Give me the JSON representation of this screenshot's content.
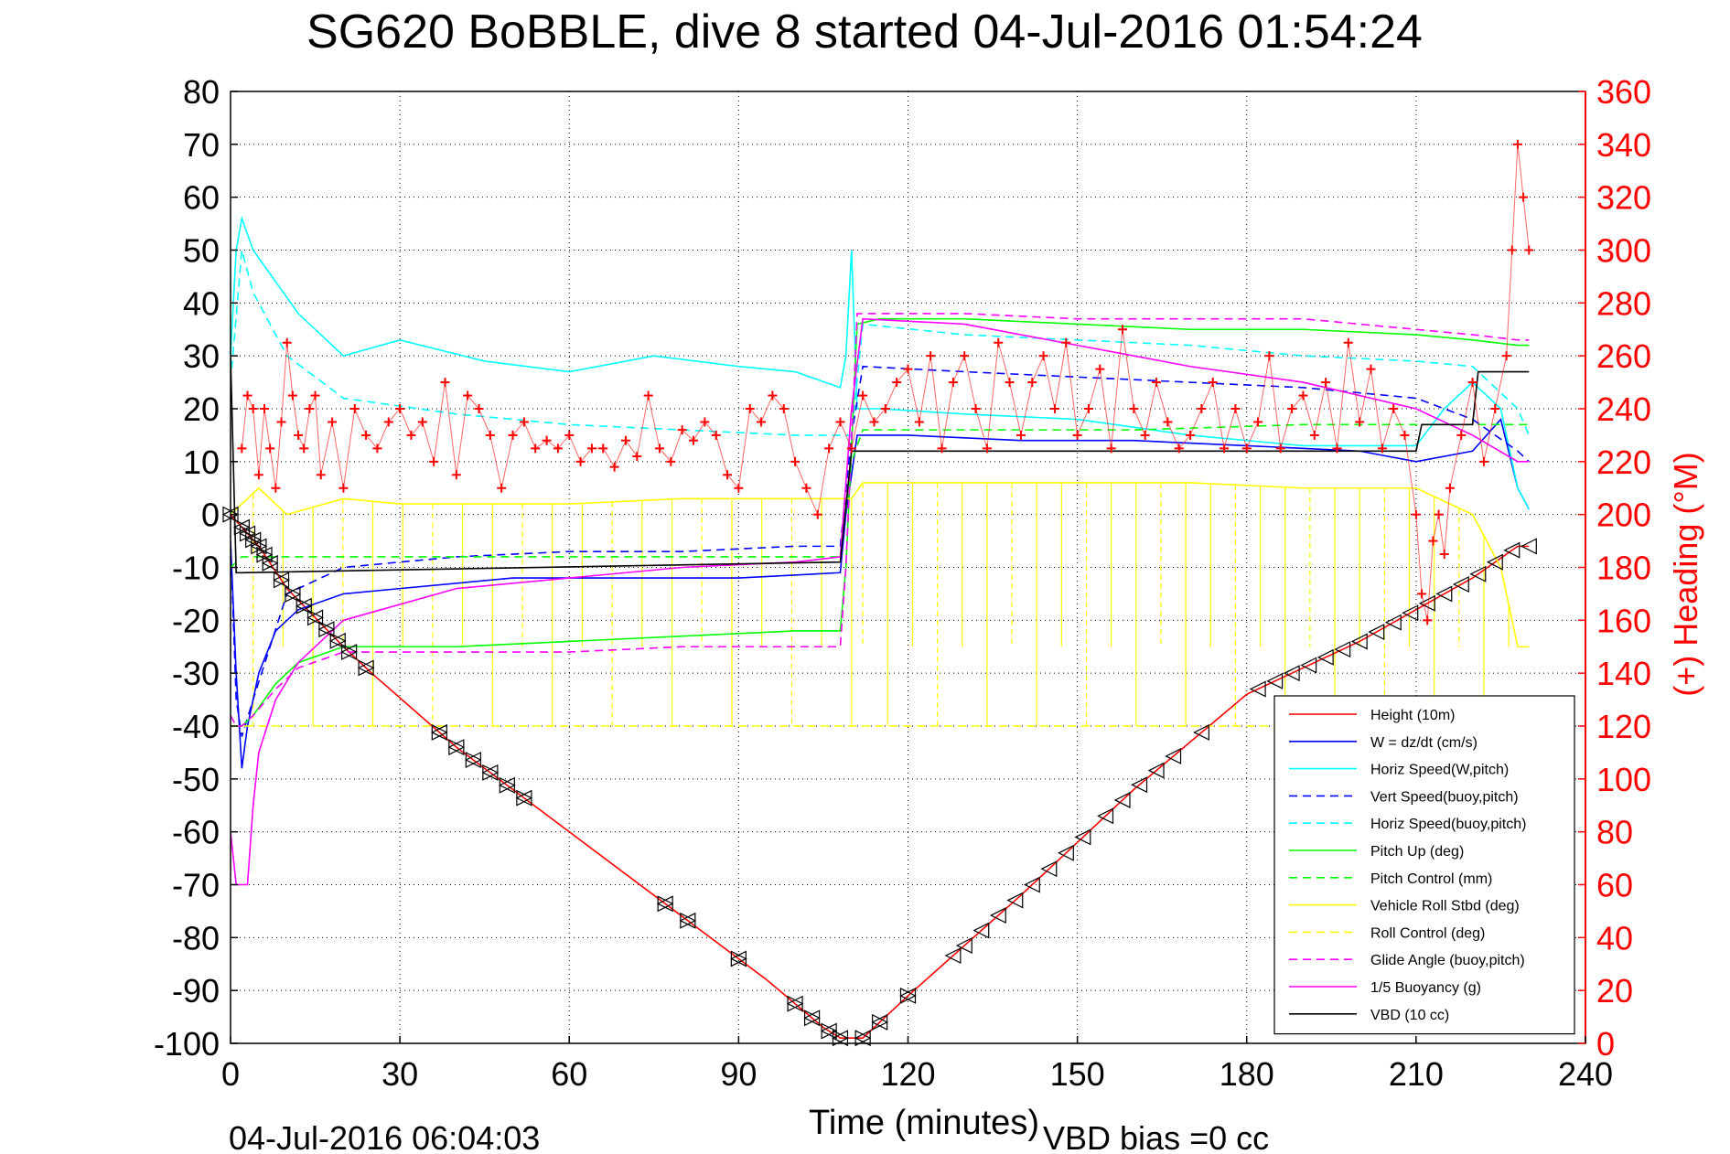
{
  "chart_data": {
    "type": "line",
    "title": "SG620 BoBBLE, dive 8 started 04-Jul-2016 01:54:24",
    "xlabel": "Time (minutes)",
    "ylabel": "",
    "y2label": "(+) Heading (°M)",
    "xlim": [
      0,
      240
    ],
    "ylim": [
      -100,
      80
    ],
    "y2lim": [
      0,
      360
    ],
    "xticks": [
      0,
      30,
      60,
      90,
      120,
      150,
      180,
      210,
      240
    ],
    "yticks": [
      80,
      70,
      60,
      50,
      40,
      30,
      20,
      10,
      0,
      -10,
      -20,
      -30,
      -40,
      -50,
      -60,
      -70,
      -80,
      -90,
      -100
    ],
    "y2ticks": [
      360,
      340,
      320,
      300,
      280,
      260,
      240,
      220,
      200,
      180,
      160,
      140,
      120,
      100,
      80,
      60,
      40,
      20,
      0
    ],
    "grid": true,
    "legend_position": "bottom-right",
    "footer_left": "04-Jul-2016 06:04:03",
    "footer_right": "VBD bias =0 cc",
    "colors": {
      "heading": "#ff0000",
      "height": "#ff0000",
      "w": "#0000ff",
      "horiz_w": "#00ffff",
      "pitch": "#00ff00",
      "roll": "#ffff00",
      "glide": "#ff00ff",
      "vbd": "#000000",
      "right_axis": "#ff0000"
    },
    "series": [
      {
        "name": "Height (10m)",
        "color": "#ff0000",
        "dash": "solid",
        "x": [
          0,
          5,
          10,
          20,
          25,
          40,
          60,
          80,
          95,
          105,
          108,
          110,
          112,
          120,
          140,
          160,
          180,
          200,
          220,
          228,
          230
        ],
        "y": [
          0,
          -6,
          -14,
          -25,
          -30,
          -44,
          -60,
          -76,
          -88,
          -97,
          -99,
          -99,
          -99,
          -91,
          -72,
          -52,
          -34,
          -24,
          -12,
          -6,
          -6
        ]
      },
      {
        "name": "W = dz/dt (cm/s)",
        "color": "#0000ff",
        "dash": "solid",
        "x": [
          0,
          1,
          2,
          3,
          5,
          8,
          12,
          20,
          30,
          50,
          70,
          90,
          108,
          109,
          111,
          115,
          120,
          140,
          160,
          180,
          200,
          210,
          220,
          225,
          228,
          230
        ],
        "y": [
          -5,
          -30,
          -48,
          -40,
          -30,
          -22,
          -18,
          -15,
          -14,
          -12,
          -12,
          -12,
          -11,
          0,
          15,
          15,
          15,
          14,
          14,
          13,
          12,
          10,
          12,
          18,
          5,
          1
        ]
      },
      {
        "name": "Horiz Speed(W,pitch)",
        "color": "#00ffff",
        "dash": "solid",
        "x": [
          0,
          1,
          2,
          4,
          8,
          12,
          20,
          30,
          45,
          60,
          75,
          90,
          100,
          108,
          109,
          110,
          111,
          115,
          130,
          150,
          170,
          190,
          210,
          215,
          220,
          225,
          228,
          230
        ],
        "y": [
          30,
          50,
          56,
          50,
          44,
          38,
          30,
          33,
          29,
          27,
          30,
          28,
          27,
          24,
          30,
          50,
          20,
          20,
          19,
          18,
          15,
          13,
          13,
          20,
          25,
          20,
          5,
          1
        ]
      },
      {
        "name": "Vert Speed(buoy,pitch)",
        "color": "#0000ff",
        "dash": "dashed",
        "x": [
          0,
          1,
          2,
          4,
          10,
          20,
          40,
          60,
          80,
          100,
          108,
          110,
          112,
          130,
          150,
          170,
          190,
          210,
          220,
          228,
          230
        ],
        "y": [
          -5,
          -35,
          -42,
          -35,
          -15,
          -10,
          -8,
          -7,
          -7,
          -6,
          -6,
          15,
          28,
          27,
          26,
          25,
          24,
          22,
          18,
          12,
          10
        ]
      },
      {
        "name": "Horiz Speed(buoy,pitch)",
        "color": "#00ffff",
        "dash": "dashed",
        "x": [
          0,
          2,
          4,
          10,
          20,
          40,
          60,
          80,
          100,
          108,
          110,
          112,
          130,
          150,
          170,
          190,
          210,
          220,
          228,
          230
        ],
        "y": [
          25,
          50,
          42,
          30,
          22,
          19,
          17,
          16,
          15,
          15,
          15,
          36,
          34,
          33,
          32,
          30,
          29,
          28,
          20,
          15
        ]
      },
      {
        "name": "Pitch Up (deg)",
        "color": "#00ff00",
        "dash": "solid",
        "x": [
          0,
          1,
          2,
          4,
          8,
          12,
          20,
          40,
          60,
          80,
          100,
          108,
          109,
          111,
          115,
          130,
          150,
          170,
          190,
          210,
          220,
          228,
          230
        ],
        "y": [
          -40,
          -40,
          -40,
          -38,
          -32,
          -28,
          -25,
          -25,
          -24,
          -23,
          -22,
          -22,
          -10,
          36,
          37,
          37,
          36,
          35,
          35,
          34,
          33,
          32,
          32
        ]
      },
      {
        "name": "Pitch Control (mm)",
        "color": "#00ff00",
        "dash": "dashed",
        "x": [
          0,
          2,
          5,
          20,
          50,
          80,
          108,
          110,
          112,
          130,
          160,
          190,
          210,
          230
        ],
        "y": [
          -10,
          -8,
          -8,
          -8,
          -8,
          -8,
          -8,
          10,
          16,
          16,
          16,
          17,
          17,
          17
        ]
      },
      {
        "name": "Vehicle Roll Stbd (deg)",
        "color": "#ffff00",
        "dash": "solid",
        "x": [
          0,
          5,
          10,
          20,
          30,
          45,
          60,
          80,
          100,
          108,
          110,
          112,
          130,
          150,
          170,
          190,
          210,
          220,
          225,
          228,
          230
        ],
        "y": [
          0,
          5,
          0,
          3,
          2,
          2,
          2,
          3,
          3,
          3,
          3,
          6,
          6,
          6,
          6,
          5,
          5,
          0,
          -10,
          -25,
          -25
        ]
      },
      {
        "name": "Roll Control (deg)",
        "color": "#ffff00",
        "dash": "dashed",
        "x": [
          0,
          50,
          108,
          110,
          150,
          200,
          230
        ],
        "y": [
          -40,
          -40,
          -40,
          -40,
          -40,
          -40,
          -40
        ]
      },
      {
        "name": "Glide Angle (buoy,pitch)",
        "color": "#ff00ff",
        "dash": "dashed",
        "x": [
          0,
          1,
          2,
          4,
          8,
          12,
          20,
          40,
          60,
          80,
          100,
          108,
          109,
          111,
          115,
          130,
          150,
          170,
          190,
          210,
          220,
          228,
          230
        ],
        "y": [
          -38,
          -40,
          -40,
          -38,
          -33,
          -29,
          -26,
          -26,
          -26,
          -25,
          -25,
          -25,
          -10,
          38,
          38,
          38,
          37,
          37,
          37,
          35,
          34,
          33,
          33
        ]
      },
      {
        "name": "1/5 Buoyancy (g)",
        "color": "#ff00ff",
        "dash": "solid",
        "x": [
          0,
          1,
          1.5,
          2,
          3,
          4,
          5,
          8,
          12,
          20,
          40,
          60,
          80,
          100,
          108,
          110,
          112,
          130,
          150,
          170,
          190,
          210,
          220,
          228,
          230
        ],
        "y": [
          -60,
          -70,
          -70,
          -70,
          -70,
          -55,
          -45,
          -35,
          -28,
          -20,
          -14,
          -12,
          -10,
          -9,
          -8,
          20,
          37,
          36,
          32,
          28,
          25,
          20,
          15,
          10,
          10
        ]
      },
      {
        "name": "VBD (10 cc)",
        "color": "#000000",
        "dash": "solid",
        "x": [
          0,
          1,
          2,
          108,
          110,
          112,
          210,
          211,
          220,
          221,
          230
        ],
        "y": [
          30,
          -11,
          -11,
          -9,
          12,
          12,
          12,
          17,
          17,
          27,
          27
        ]
      }
    ],
    "heading_points": {
      "name": "Heading",
      "color": "#ff0000",
      "marker": "+",
      "x": [
        2,
        3,
        4,
        5,
        6,
        7,
        8,
        9,
        10,
        11,
        12,
        13,
        14,
        15,
        16,
        18,
        20,
        22,
        24,
        26,
        28,
        30,
        32,
        34,
        36,
        38,
        40,
        42,
        44,
        46,
        48,
        50,
        52,
        54,
        56,
        58,
        60,
        62,
        64,
        66,
        68,
        70,
        72,
        74,
        76,
        78,
        80,
        82,
        84,
        86,
        88,
        90,
        92,
        94,
        96,
        98,
        100,
        102,
        104,
        106,
        108,
        110,
        112,
        114,
        116,
        118,
        120,
        122,
        124,
        126,
        128,
        130,
        132,
        134,
        136,
        138,
        140,
        142,
        144,
        146,
        148,
        150,
        152,
        154,
        156,
        158,
        160,
        162,
        164,
        166,
        168,
        170,
        172,
        174,
        176,
        178,
        180,
        182,
        184,
        186,
        188,
        190,
        192,
        194,
        196,
        198,
        200,
        202,
        204,
        206,
        208,
        210,
        211,
        212,
        213,
        214,
        215,
        216,
        218,
        220,
        222,
        224,
        226,
        227,
        228,
        229,
        230
      ],
      "y": [
        225,
        245,
        240,
        215,
        240,
        225,
        210,
        235,
        265,
        245,
        230,
        225,
        240,
        245,
        215,
        235,
        210,
        240,
        230,
        225,
        235,
        240,
        230,
        235,
        220,
        250,
        215,
        245,
        240,
        230,
        210,
        230,
        235,
        225,
        228,
        225,
        230,
        220,
        225,
        225,
        218,
        228,
        222,
        245,
        225,
        220,
        232,
        228,
        235,
        230,
        215,
        210,
        240,
        235,
        245,
        240,
        220,
        210,
        200,
        225,
        235,
        225,
        245,
        235,
        240,
        250,
        255,
        235,
        260,
        225,
        250,
        260,
        240,
        225,
        265,
        250,
        230,
        250,
        260,
        240,
        265,
        230,
        240,
        255,
        225,
        270,
        240,
        230,
        250,
        235,
        225,
        230,
        240,
        250,
        225,
        240,
        225,
        235,
        260,
        225,
        240,
        245,
        230,
        250,
        225,
        265,
        235,
        255,
        225,
        240,
        230,
        200,
        170,
        160,
        190,
        200,
        185,
        210,
        230,
        250,
        220,
        240,
        260,
        300,
        340,
        320,
        300
      ]
    },
    "descent_markers_x": [
      0,
      2,
      3,
      4,
      5,
      6,
      7,
      9,
      11,
      13,
      15,
      17,
      19,
      21,
      24,
      37,
      40,
      43,
      46,
      49,
      52,
      77,
      81,
      90,
      100,
      103,
      106,
      108,
      112,
      115,
      120
    ],
    "ascent_markers_x": [
      128,
      130,
      133,
      136,
      139,
      142,
      145,
      148,
      151,
      155,
      158,
      161,
      164,
      167,
      172,
      182,
      185,
      188,
      191,
      194,
      197,
      200,
      203,
      206,
      209,
      212,
      215,
      218,
      221,
      224,
      227,
      230
    ]
  }
}
